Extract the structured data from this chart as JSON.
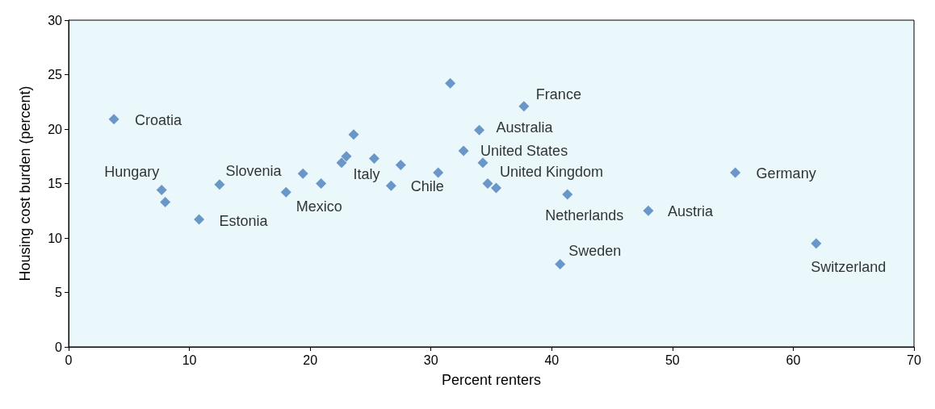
{
  "chart_data": {
    "type": "scatter",
    "xlabel": "Percent renters",
    "ylabel": "Housing cost burden (percent)",
    "x": [
      3.75,
      7.7,
      8.0,
      10.8,
      12.5,
      18.0,
      19.4,
      20.9,
      22.6,
      23.0,
      23.6,
      25.3,
      26.7,
      27.5,
      30.6,
      31.6,
      32.7,
      34.0,
      34.3,
      34.7,
      35.4,
      37.7,
      40.7,
      41.3,
      48.0,
      55.2,
      61.9
    ],
    "series": [
      {
        "color": "#4a7ebb",
        "values": [
          20.9,
          14.4,
          13.3,
          11.7,
          14.9,
          14.2,
          15.9,
          15.0,
          16.9,
          17.5,
          19.5,
          17.3,
          14.8,
          16.7,
          16.0,
          24.2,
          18.0,
          19.9,
          16.9,
          15.0,
          14.6,
          22.1,
          7.6,
          14.0,
          12.5,
          16.0,
          9.5
        ]
      }
    ],
    "xlim": [
      0,
      70
    ],
    "xticks": [
      0,
      10,
      20,
      30,
      40,
      50,
      60,
      70
    ],
    "ylim": [
      0,
      30
    ],
    "yticks": [
      0,
      5,
      10,
      15,
      20,
      25,
      30
    ],
    "grid": false,
    "marker": "diamond",
    "annotations": [
      {
        "text": "Croatia",
        "x": 3.75,
        "y": 20.9
      },
      {
        "text": "Hungary",
        "x": 7.7,
        "y": 14.4
      },
      {
        "text": "Estonia",
        "x": 10.8,
        "y": 11.7
      },
      {
        "text": "Slovenia",
        "x": 12.5,
        "y": 14.9
      },
      {
        "text": "Mexico",
        "x": 18.0,
        "y": 14.2
      },
      {
        "text": "Italy",
        "x": 22.6,
        "y": 16.9
      },
      {
        "text": "Chile",
        "x": 26.7,
        "y": 14.8
      },
      {
        "text": "Australia",
        "x": 34.0,
        "y": 19.9
      },
      {
        "text": "United States",
        "x": 32.7,
        "y": 18.0
      },
      {
        "text": "United Kingdom",
        "x": 34.3,
        "y": 16.9
      },
      {
        "text": "France",
        "x": 37.7,
        "y": 22.1
      },
      {
        "text": "Sweden",
        "x": 40.7,
        "y": 7.6
      },
      {
        "text": "Netherlands",
        "x": 41.3,
        "y": 14.0
      },
      {
        "text": "Austria",
        "x": 48.0,
        "y": 12.5
      },
      {
        "text": "Germany",
        "x": 55.2,
        "y": 16.0
      },
      {
        "text": "Switzerland",
        "x": 61.9,
        "y": 9.5
      }
    ]
  }
}
